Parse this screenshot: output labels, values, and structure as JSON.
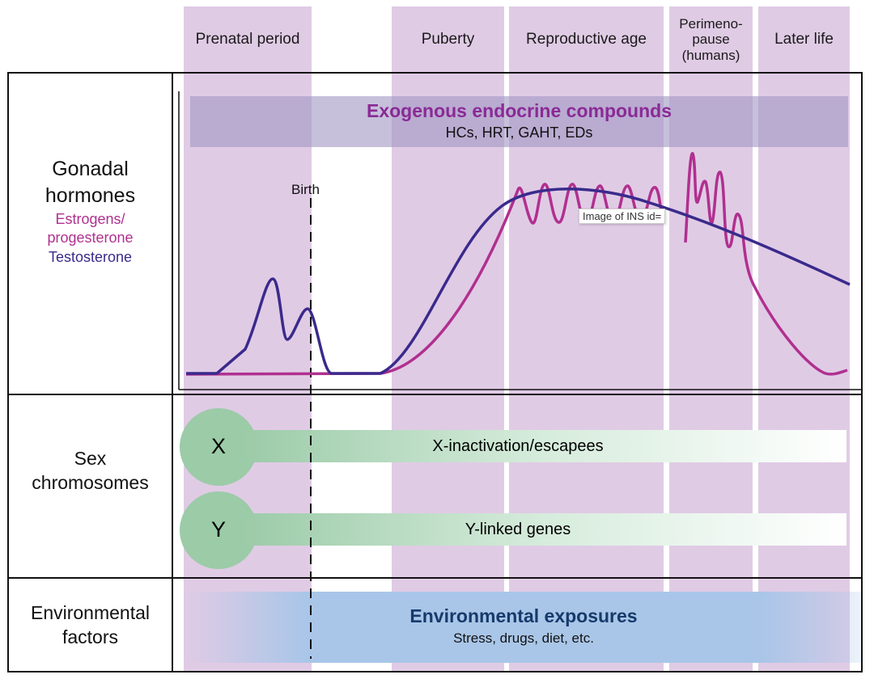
{
  "stages": [
    {
      "label": "Prenatal period"
    },
    {
      "label": "Puberty"
    },
    {
      "label": "Reproductive age"
    },
    {
      "label": "Perimeno-\npause\n(humans)"
    },
    {
      "label": "Later life"
    }
  ],
  "rows": {
    "gonadal": {
      "title": "Gonadal hormones",
      "estrogen_label": "Estrogens/ progesterone",
      "testosterone_label": "Testosterone"
    },
    "sex_chromosomes": {
      "title": "Sex chromosomes"
    },
    "environmental": {
      "title": "Environmental factors"
    }
  },
  "exogenous": {
    "title": "Exogenous endocrine compounds",
    "subtitle": "HCs, HRT, GAHT, EDs"
  },
  "birth_label": "Birth",
  "tooltip": "Image of INS id=",
  "chromosomes": [
    {
      "letter": "X",
      "label": "X-inactivation/escapees"
    },
    {
      "letter": "Y",
      "label": "Y-linked genes"
    }
  ],
  "environment": {
    "title": "Environmental exposures",
    "subtitle": "Stress, drugs, diet, etc."
  },
  "colors": {
    "band": "#e0cbe5",
    "estrogen": "#b0308f",
    "testosterone": "#3a2a8c",
    "exogenous_title": "#8a2a95",
    "chromosome": "#9ccba8",
    "environment": "#a9c6e8",
    "environment_title": "#163a6b"
  }
}
